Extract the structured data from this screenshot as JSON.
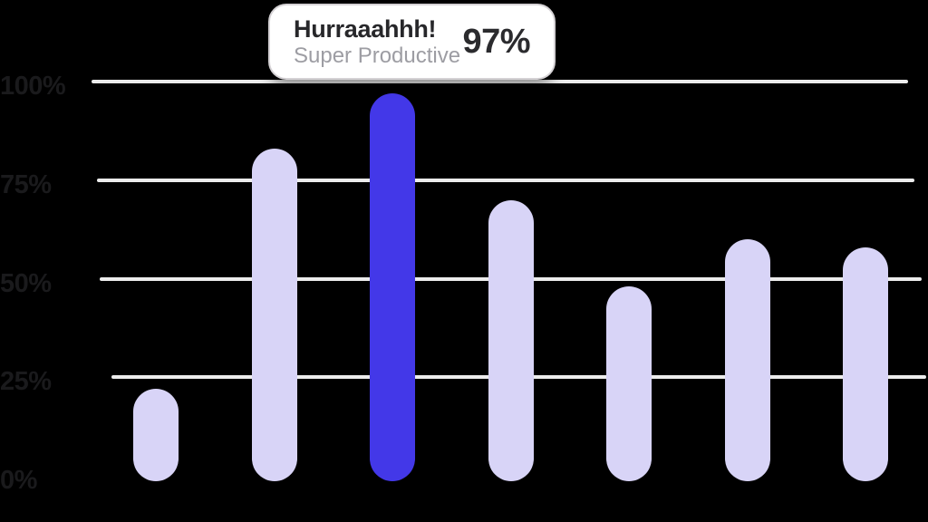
{
  "chart_data": {
    "type": "bar",
    "title": "",
    "values": [
      22,
      83,
      97,
      70,
      48,
      60,
      58
    ],
    "highlight_index": 2,
    "ylim": [
      0,
      100
    ],
    "yticks": [
      {
        "label": "100%",
        "value": 100
      },
      {
        "label": "75%",
        "value": 75
      },
      {
        "label": "50%",
        "value": 50
      },
      {
        "label": "25%",
        "value": 25
      },
      {
        "label": "0%",
        "value": 0
      }
    ],
    "grid": "horizontal",
    "legend_position": "none",
    "colors": {
      "background": "#000000",
      "bar": "#D8D4F7",
      "bar_highlight": "#4338E8",
      "gridline": "#ECECEC",
      "tick_label": "#1A1A1C",
      "tooltip_bg": "#FFFFFF",
      "tooltip_border": "#D5D2D5",
      "tooltip_title": "#27272A",
      "tooltip_subtitle": "#9D9DA3",
      "tooltip_value": "#2B2B2E"
    },
    "tooltip": {
      "title": "Hurraaahhh!",
      "subtitle": "Super Productive",
      "value": "97%"
    }
  }
}
